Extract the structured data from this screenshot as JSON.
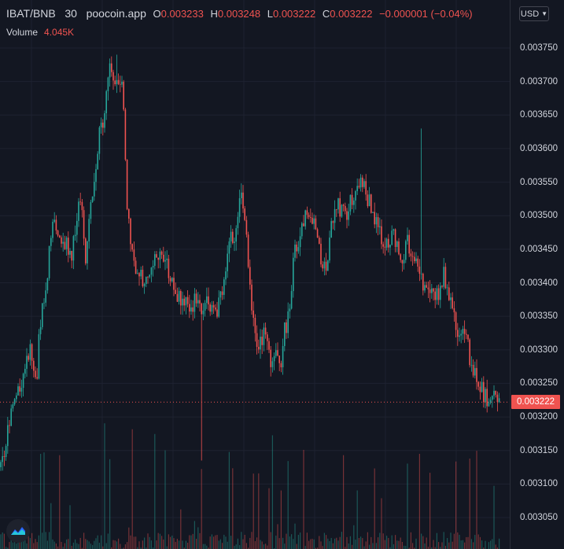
{
  "header": {
    "symbol": "IBAT/BNB",
    "interval": "30",
    "source": "poocoin.app",
    "open_label": "O",
    "open": "0.003233",
    "high_label": "H",
    "high": "0.003248",
    "low_label": "L",
    "low": "0.003222",
    "close_label": "C",
    "close": "0.003222",
    "change": "−0.000001 (−0.04%)"
  },
  "volume": {
    "label": "Volume",
    "value": "4.045K"
  },
  "currency": "USD",
  "last_price_label": "0.003222",
  "colors": {
    "up": "#26a69a",
    "down": "#ef5350",
    "bg": "#131722",
    "grid": "#1e2230"
  },
  "chart_data": {
    "type": "candlestick",
    "y_axis_ticks": [
      "0.003750",
      "0.003700",
      "0.003650",
      "0.003600",
      "0.003550",
      "0.003500",
      "0.003450",
      "0.003400",
      "0.003350",
      "0.003300",
      "0.003250",
      "0.003200",
      "0.003150",
      "0.003100",
      "0.003050"
    ],
    "ylim": [
      0.003035,
      0.00377
    ],
    "last_price": 0.003222,
    "price_path": [
      [
        0,
        0.003125
      ],
      [
        5,
        0.00314
      ],
      [
        12,
        0.0032
      ],
      [
        22,
        0.00323
      ],
      [
        32,
        0.00328
      ],
      [
        40,
        0.0033
      ],
      [
        46,
        0.003245
      ],
      [
        50,
        0.00333
      ],
      [
        58,
        0.00339
      ],
      [
        66,
        0.00348
      ],
      [
        74,
        0.00348
      ],
      [
        82,
        0.00346
      ],
      [
        90,
        0.00344
      ],
      [
        98,
        0.00349
      ],
      [
        103,
        0.00354
      ],
      [
        108,
        0.00343
      ],
      [
        114,
        0.0035
      ],
      [
        120,
        0.00356
      ],
      [
        126,
        0.00362
      ],
      [
        132,
        0.00364
      ],
      [
        138,
        0.00372
      ],
      [
        145,
        0.00369
      ],
      [
        150,
        0.00371
      ],
      [
        156,
        0.00368
      ],
      [
        161,
        0.00353
      ],
      [
        165,
        0.00347
      ],
      [
        170,
        0.00343
      ],
      [
        176,
        0.00342
      ],
      [
        182,
        0.0034
      ],
      [
        188,
        0.00341
      ],
      [
        194,
        0.00343
      ],
      [
        200,
        0.00345
      ],
      [
        208,
        0.00343
      ],
      [
        214,
        0.00342
      ],
      [
        220,
        0.00339
      ],
      [
        228,
        0.00338
      ],
      [
        236,
        0.00337
      ],
      [
        244,
        0.00336
      ],
      [
        250,
        0.00338
      ],
      [
        256,
        0.00335
      ],
      [
        262,
        0.00338
      ],
      [
        268,
        0.00337
      ],
      [
        275,
        0.00336
      ],
      [
        282,
        0.00339
      ],
      [
        288,
        0.00342
      ],
      [
        294,
        0.00347
      ],
      [
        300,
        0.00347
      ],
      [
        306,
        0.00354
      ],
      [
        311,
        0.0035
      ],
      [
        316,
        0.00342
      ],
      [
        321,
        0.00335
      ],
      [
        326,
        0.0033
      ],
      [
        332,
        0.00332
      ],
      [
        338,
        0.00333
      ],
      [
        344,
        0.00328
      ],
      [
        350,
        0.0033
      ],
      [
        356,
        0.00326
      ],
      [
        362,
        0.00333
      ],
      [
        368,
        0.00336
      ],
      [
        374,
        0.00344
      ],
      [
        380,
        0.00346
      ],
      [
        386,
        0.00349
      ],
      [
        392,
        0.0035
      ],
      [
        398,
        0.0035
      ],
      [
        404,
        0.00346
      ],
      [
        410,
        0.00343
      ],
      [
        416,
        0.00342
      ],
      [
        422,
        0.00349
      ],
      [
        428,
        0.00352
      ],
      [
        434,
        0.00351
      ],
      [
        440,
        0.0035
      ],
      [
        446,
        0.00352
      ],
      [
        452,
        0.00353
      ],
      [
        458,
        0.00356
      ],
      [
        464,
        0.00354
      ],
      [
        470,
        0.00352
      ],
      [
        476,
        0.0035
      ],
      [
        482,
        0.00349
      ],
      [
        488,
        0.00345
      ],
      [
        494,
        0.00346
      ],
      [
        500,
        0.00347
      ],
      [
        506,
        0.00345
      ],
      [
        512,
        0.00344
      ],
      [
        518,
        0.00346
      ],
      [
        524,
        0.00345
      ],
      [
        530,
        0.00342
      ],
      [
        535,
        0.0034
      ],
      [
        540,
        0.00339
      ],
      [
        546,
        0.0034
      ],
      [
        552,
        0.00339
      ],
      [
        558,
        0.00338
      ],
      [
        564,
        0.00341
      ],
      [
        570,
        0.00339
      ],
      [
        576,
        0.00336
      ],
      [
        582,
        0.00332
      ],
      [
        588,
        0.00333
      ],
      [
        594,
        0.00331
      ],
      [
        600,
        0.00327
      ],
      [
        606,
        0.00326
      ],
      [
        612,
        0.00324
      ],
      [
        618,
        0.00323
      ],
      [
        624,
        0.00323
      ],
      [
        630,
        0.00324
      ],
      [
        636,
        0.003222
      ]
    ],
    "spikes": [
      {
        "x": 256,
        "low": 0.003135
      },
      {
        "x": 536,
        "high": 0.00363
      },
      {
        "x": 148,
        "high": 0.00374
      }
    ]
  }
}
